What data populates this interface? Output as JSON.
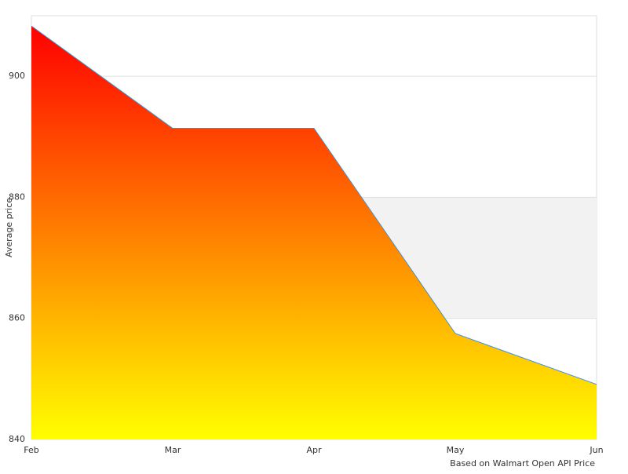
{
  "chart_data": {
    "type": "area",
    "categories": [
      "Feb",
      "Mar",
      "Apr",
      "May",
      "Jun"
    ],
    "series": [
      {
        "name": "Average price",
        "values": [
          908.3,
          891.4,
          891.4,
          857.5,
          849.1
        ]
      }
    ],
    "y_label": "Average price",
    "credit": "Based on Walmart Open API Price",
    "ylim": [
      840,
      910
    ],
    "yticks": [
      840,
      860,
      880,
      900
    ],
    "grid": true,
    "plot_bands": [
      {
        "from": 860,
        "to": 880,
        "color": "#f2f2f2"
      }
    ],
    "gradient": [
      "#ff0000",
      "#ffff00"
    ],
    "line_color": "#4a90c8"
  }
}
